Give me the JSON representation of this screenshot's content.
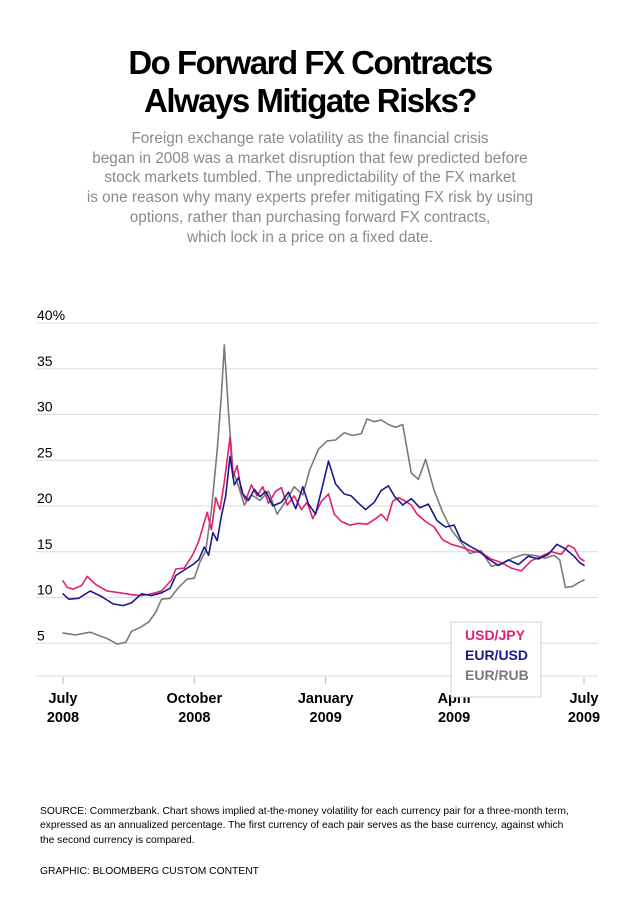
{
  "title_lines": [
    "Do Forward FX Contracts",
    "Always Mitigate Risks?"
  ],
  "subtitle_lines": [
    "Foreign exchange rate volatility as the financial crisis",
    "began in 2008 was a market disruption that few predicted before",
    "stock markets tumbled. The unpredictability of the FX market",
    "is one reason why many experts prefer mitigating FX risk by using",
    "options, rather than purchasing forward FX contracts,",
    "which lock in a price on a fixed date."
  ],
  "chart_data": {
    "type": "line",
    "title": "",
    "xlabel": "",
    "ylabel": "",
    "ylim": [
      0,
      40
    ],
    "xlim": [
      "2008-07-01",
      "2009-07-01"
    ],
    "grid": "horizontal",
    "legend_position": "top-right",
    "y_ticks": [
      {
        "value": 40,
        "label": "40%"
      },
      {
        "value": 35,
        "label": "35"
      },
      {
        "value": 30,
        "label": "30"
      },
      {
        "value": 25,
        "label": "25"
      },
      {
        "value": 20,
        "label": "20"
      },
      {
        "value": 15,
        "label": "15"
      },
      {
        "value": 10,
        "label": "10"
      },
      {
        "value": 5,
        "label": "5"
      }
    ],
    "x_ticks": [
      {
        "date": "2008-07-01",
        "line1": "July",
        "line2": "2008"
      },
      {
        "date": "2008-10-01",
        "line1": "October",
        "line2": "2008"
      },
      {
        "date": "2009-01-01",
        "line1": "January",
        "line2": "2009"
      },
      {
        "date": "2009-04-01",
        "line1": "April",
        "line2": "2009"
      },
      {
        "date": "2009-07-01",
        "line1": "July",
        "line2": "2009"
      }
    ],
    "series": [
      {
        "name": "USD/JPY",
        "color": "#e2206f",
        "points": [
          [
            "2008-07-01",
            11.7
          ],
          [
            "2008-07-04",
            11.0
          ],
          [
            "2008-07-08",
            10.8
          ],
          [
            "2008-07-14",
            11.2
          ],
          [
            "2008-07-18",
            12.2
          ],
          [
            "2008-07-24",
            11.3
          ],
          [
            "2008-08-01",
            10.6
          ],
          [
            "2008-08-10",
            10.4
          ],
          [
            "2008-08-18",
            10.2
          ],
          [
            "2008-08-25",
            10.1
          ],
          [
            "2008-09-01",
            10.3
          ],
          [
            "2008-09-08",
            10.6
          ],
          [
            "2008-09-15",
            11.8
          ],
          [
            "2008-09-18",
            13.0
          ],
          [
            "2008-09-24",
            13.1
          ],
          [
            "2008-09-30",
            14.6
          ],
          [
            "2008-10-04",
            16.0
          ],
          [
            "2008-10-07",
            17.6
          ],
          [
            "2008-10-10",
            19.2
          ],
          [
            "2008-10-13",
            17.3
          ],
          [
            "2008-10-16",
            20.8
          ],
          [
            "2008-10-19",
            19.5
          ],
          [
            "2008-10-22",
            22.5
          ],
          [
            "2008-10-24",
            25.0
          ],
          [
            "2008-10-26",
            27.4
          ],
          [
            "2008-10-28",
            23.0
          ],
          [
            "2008-10-31",
            24.3
          ],
          [
            "2008-11-03",
            21.5
          ],
          [
            "2008-11-06",
            20.5
          ],
          [
            "2008-11-10",
            22.2
          ],
          [
            "2008-11-14",
            21.0
          ],
          [
            "2008-11-18",
            22.0
          ],
          [
            "2008-11-22",
            20.2
          ],
          [
            "2008-11-27",
            21.5
          ],
          [
            "2008-12-01",
            21.9
          ],
          [
            "2008-12-05",
            20.0
          ],
          [
            "2008-12-10",
            21.0
          ],
          [
            "2008-12-15",
            19.5
          ],
          [
            "2008-12-19",
            20.3
          ],
          [
            "2008-12-23",
            18.5
          ],
          [
            "2008-12-29",
            20.4
          ],
          [
            "2009-01-03",
            21.2
          ],
          [
            "2009-01-07",
            19.0
          ],
          [
            "2009-01-12",
            18.2
          ],
          [
            "2009-01-18",
            17.8
          ],
          [
            "2009-01-24",
            18.0
          ],
          [
            "2009-01-30",
            17.9
          ],
          [
            "2009-02-05",
            18.5
          ],
          [
            "2009-02-09",
            19.0
          ],
          [
            "2009-02-13",
            18.3
          ],
          [
            "2009-02-17",
            20.4
          ],
          [
            "2009-02-21",
            20.8
          ],
          [
            "2009-02-25",
            20.5
          ],
          [
            "2009-03-02",
            20.0
          ],
          [
            "2009-03-06",
            19.0
          ],
          [
            "2009-03-12",
            18.2
          ],
          [
            "2009-03-18",
            17.6
          ],
          [
            "2009-03-24",
            16.2
          ],
          [
            "2009-03-30",
            15.7
          ],
          [
            "2009-04-06",
            15.4
          ],
          [
            "2009-04-13",
            15.0
          ],
          [
            "2009-04-20",
            14.8
          ],
          [
            "2009-04-27",
            14.1
          ],
          [
            "2009-05-04",
            13.7
          ],
          [
            "2009-05-11",
            13.1
          ],
          [
            "2009-05-18",
            12.8
          ],
          [
            "2009-05-25",
            13.9
          ],
          [
            "2009-06-01",
            14.4
          ],
          [
            "2009-06-08",
            14.9
          ],
          [
            "2009-06-15",
            14.6
          ],
          [
            "2009-06-20",
            15.6
          ],
          [
            "2009-06-24",
            15.3
          ],
          [
            "2009-06-28",
            14.2
          ],
          [
            "2009-07-01",
            13.9
          ]
        ]
      },
      {
        "name": "EUR/USD",
        "color": "#1a1a8c",
        "points": [
          [
            "2008-07-01",
            10.3
          ],
          [
            "2008-07-05",
            9.7
          ],
          [
            "2008-07-12",
            9.8
          ],
          [
            "2008-07-20",
            10.6
          ],
          [
            "2008-07-28",
            10.0
          ],
          [
            "2008-08-05",
            9.2
          ],
          [
            "2008-08-12",
            9.0
          ],
          [
            "2008-08-18",
            9.3
          ],
          [
            "2008-08-25",
            10.3
          ],
          [
            "2008-09-01",
            10.1
          ],
          [
            "2008-09-08",
            10.4
          ],
          [
            "2008-09-14",
            10.9
          ],
          [
            "2008-09-18",
            12.3
          ],
          [
            "2008-09-24",
            12.9
          ],
          [
            "2008-09-30",
            13.5
          ],
          [
            "2008-10-04",
            14.0
          ],
          [
            "2008-10-08",
            15.4
          ],
          [
            "2008-10-11",
            14.5
          ],
          [
            "2008-10-14",
            17.0
          ],
          [
            "2008-10-17",
            16.1
          ],
          [
            "2008-10-20",
            18.8
          ],
          [
            "2008-10-23",
            21.0
          ],
          [
            "2008-10-26",
            25.3
          ],
          [
            "2008-10-29",
            22.2
          ],
          [
            "2008-11-01",
            23.0
          ],
          [
            "2008-11-04",
            21.2
          ],
          [
            "2008-11-08",
            20.5
          ],
          [
            "2008-11-12",
            21.7
          ],
          [
            "2008-11-16",
            20.9
          ],
          [
            "2008-11-20",
            21.5
          ],
          [
            "2008-11-25",
            19.9
          ],
          [
            "2008-12-01",
            20.3
          ],
          [
            "2008-12-06",
            21.4
          ],
          [
            "2008-12-11",
            19.6
          ],
          [
            "2008-12-16",
            22.0
          ],
          [
            "2008-12-20",
            20.1
          ],
          [
            "2008-12-25",
            19.0
          ],
          [
            "2008-12-30",
            22.2
          ],
          [
            "2009-01-03",
            24.8
          ],
          [
            "2009-01-08",
            22.3
          ],
          [
            "2009-01-14",
            21.2
          ],
          [
            "2009-01-19",
            21.0
          ],
          [
            "2009-01-24",
            20.2
          ],
          [
            "2009-01-29",
            19.5
          ],
          [
            "2009-02-04",
            20.3
          ],
          [
            "2009-02-09",
            21.6
          ],
          [
            "2009-02-14",
            22.1
          ],
          [
            "2009-02-18",
            21.0
          ],
          [
            "2009-02-24",
            20.0
          ],
          [
            "2009-03-02",
            20.7
          ],
          [
            "2009-03-08",
            19.7
          ],
          [
            "2009-03-14",
            20.1
          ],
          [
            "2009-03-20",
            18.3
          ],
          [
            "2009-03-26",
            17.6
          ],
          [
            "2009-04-01",
            17.8
          ],
          [
            "2009-04-06",
            16.1
          ],
          [
            "2009-04-12",
            15.5
          ],
          [
            "2009-04-18",
            15.0
          ],
          [
            "2009-04-25",
            14.1
          ],
          [
            "2009-05-02",
            13.4
          ],
          [
            "2009-05-09",
            14.0
          ],
          [
            "2009-05-16",
            13.5
          ],
          [
            "2009-05-23",
            14.4
          ],
          [
            "2009-05-30",
            14.1
          ],
          [
            "2009-06-06",
            14.6
          ],
          [
            "2009-06-12",
            15.7
          ],
          [
            "2009-06-18",
            15.2
          ],
          [
            "2009-06-24",
            14.4
          ],
          [
            "2009-06-28",
            13.7
          ],
          [
            "2009-07-01",
            13.4
          ]
        ]
      },
      {
        "name": "EUR/RUB",
        "color": "#7a7a7a",
        "points": [
          [
            "2008-07-01",
            6.0
          ],
          [
            "2008-07-10",
            5.8
          ],
          [
            "2008-07-20",
            6.1
          ],
          [
            "2008-08-01",
            5.4
          ],
          [
            "2008-08-08",
            4.8
          ],
          [
            "2008-08-14",
            5.0
          ],
          [
            "2008-08-18",
            6.2
          ],
          [
            "2008-08-24",
            6.6
          ],
          [
            "2008-08-30",
            7.2
          ],
          [
            "2008-09-04",
            8.3
          ],
          [
            "2008-09-08",
            9.7
          ],
          [
            "2008-09-14",
            9.8
          ],
          [
            "2008-09-20",
            11.0
          ],
          [
            "2008-09-26",
            11.9
          ],
          [
            "2008-10-01",
            12.0
          ],
          [
            "2008-10-05",
            13.8
          ],
          [
            "2008-10-09",
            15.0
          ],
          [
            "2008-10-13",
            19.4
          ],
          [
            "2008-10-17",
            26.0
          ],
          [
            "2008-10-20",
            32.0
          ],
          [
            "2008-10-22",
            37.5
          ],
          [
            "2008-10-25",
            30.0
          ],
          [
            "2008-10-28",
            23.8
          ],
          [
            "2008-11-01",
            22.0
          ],
          [
            "2008-11-05",
            20.0
          ],
          [
            "2008-11-10",
            21.1
          ],
          [
            "2008-11-16",
            20.5
          ],
          [
            "2008-11-22",
            21.5
          ],
          [
            "2008-11-28",
            19.0
          ],
          [
            "2008-12-04",
            20.4
          ],
          [
            "2008-12-10",
            22.0
          ],
          [
            "2008-12-16",
            21.1
          ],
          [
            "2008-12-21",
            23.9
          ],
          [
            "2008-12-27",
            26.1
          ],
          [
            "2009-01-02",
            27.0
          ],
          [
            "2009-01-08",
            27.1
          ],
          [
            "2009-01-14",
            27.9
          ],
          [
            "2009-01-20",
            27.6
          ],
          [
            "2009-01-26",
            27.8
          ],
          [
            "2009-01-30",
            29.4
          ],
          [
            "2009-02-04",
            29.1
          ],
          [
            "2009-02-09",
            29.3
          ],
          [
            "2009-02-14",
            28.8
          ],
          [
            "2009-02-19",
            28.5
          ],
          [
            "2009-02-24",
            28.8
          ],
          [
            "2009-03-02",
            23.5
          ],
          [
            "2009-03-07",
            22.8
          ],
          [
            "2009-03-12",
            25.0
          ],
          [
            "2009-03-18",
            21.6
          ],
          [
            "2009-03-24",
            19.2
          ],
          [
            "2009-03-30",
            17.3
          ],
          [
            "2009-04-05",
            16.1
          ],
          [
            "2009-04-12",
            14.7
          ],
          [
            "2009-04-20",
            15.0
          ],
          [
            "2009-04-27",
            13.3
          ],
          [
            "2009-05-05",
            13.6
          ],
          [
            "2009-05-12",
            14.2
          ],
          [
            "2009-05-20",
            14.6
          ],
          [
            "2009-05-27",
            14.5
          ],
          [
            "2009-06-04",
            14.2
          ],
          [
            "2009-06-10",
            14.5
          ],
          [
            "2009-06-14",
            14.0
          ],
          [
            "2009-06-18",
            11.0
          ],
          [
            "2009-06-23",
            11.1
          ],
          [
            "2009-06-27",
            11.5
          ],
          [
            "2009-07-01",
            11.8
          ]
        ]
      }
    ]
  },
  "source_lines": [
    "SOURCE: Commerzbank. Chart shows implied at-the-money volatility for each currency pair for a three-month term,",
    "expressed as an annualized percentage. The first currency of each pair serves as the base currency, against which",
    "the second currency is compared."
  ],
  "credit": "GRAPHIC: BLOOMBERG CUSTOM CONTENT"
}
